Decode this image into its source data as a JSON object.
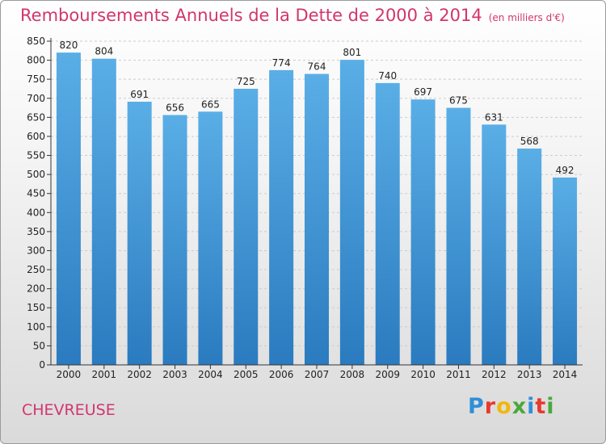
{
  "chart_data": {
    "type": "bar",
    "title": "Remboursements Annuels de la Dette de 2000 à 2014",
    "subtitle": "(en milliers d'€)",
    "categories": [
      "2000",
      "2001",
      "2002",
      "2003",
      "2004",
      "2005",
      "2006",
      "2007",
      "2008",
      "2009",
      "2010",
      "2011",
      "2012",
      "2013",
      "2014"
    ],
    "values": [
      820,
      804,
      691,
      656,
      665,
      725,
      774,
      764,
      801,
      740,
      697,
      675,
      631,
      568,
      492
    ],
    "ylim": [
      0,
      850
    ],
    "yticks": [
      0,
      50,
      100,
      150,
      200,
      250,
      300,
      350,
      400,
      450,
      500,
      550,
      600,
      650,
      700,
      750,
      800,
      850
    ],
    "grid": true,
    "bar_color_top": "#5aaee6",
    "bar_color_bottom": "#2a7bbf"
  },
  "commune": "CHEVREUSE",
  "logo": {
    "letters": [
      "P",
      "r",
      "o",
      "x",
      "i",
      "t",
      "i"
    ],
    "colors": [
      "#2f8fd8",
      "#e8392c",
      "#f3b70a",
      "#4aa83c",
      "#2f8fd8",
      "#e8392c",
      "#4aa83c"
    ]
  },
  "colors": {
    "title": "#d2356e",
    "axis": "#333333",
    "grid": "#cccccc"
  }
}
